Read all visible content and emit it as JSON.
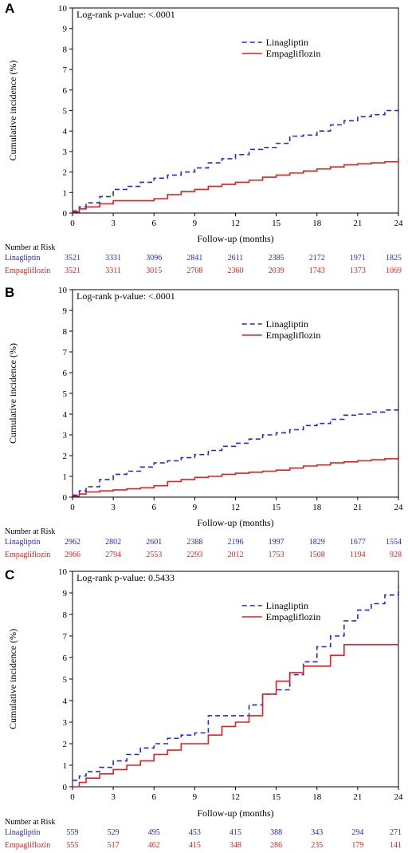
{
  "colors": {
    "linagliptin": "#2424e6",
    "empagliflozin": "#e61e1e",
    "axis": "#000000"
  },
  "chart_data": [
    {
      "panel": "A",
      "type": "line",
      "annotation": "Log-rank p-value: <.0001",
      "xlabel": "Follow-up (months)",
      "ylabel": "Cumulative incidence (%)",
      "xlim": [
        0,
        24
      ],
      "ylim": [
        0,
        10
      ],
      "xticks": [
        "0",
        "3",
        "6",
        "9",
        "12",
        "15",
        "18",
        "21",
        "24"
      ],
      "yticks": [
        "0",
        "1",
        "2",
        "3",
        "4",
        "5",
        "6",
        "7",
        "8",
        "9",
        "10"
      ],
      "legend_position": "top-right",
      "series": [
        {
          "name": "Linagliptin",
          "color": "#2424e6",
          "dash": true,
          "x": [
            0,
            0.5,
            1,
            2,
            3,
            4,
            5,
            6,
            7,
            8,
            9,
            10,
            11,
            12,
            13,
            14,
            15,
            16,
            17,
            18,
            19,
            20,
            21,
            22,
            23,
            24
          ],
          "y": [
            0.1,
            0.3,
            0.5,
            0.8,
            1.15,
            1.3,
            1.5,
            1.7,
            1.85,
            2.0,
            2.2,
            2.45,
            2.65,
            2.85,
            3.1,
            3.2,
            3.4,
            3.75,
            3.8,
            4.0,
            4.3,
            4.5,
            4.7,
            4.8,
            5.0,
            5.2
          ]
        },
        {
          "name": "Empagliflozin",
          "color": "#e61e1e",
          "dash": false,
          "x": [
            0,
            0.5,
            1,
            2,
            3,
            4,
            5,
            6,
            7,
            8,
            9,
            10,
            11,
            12,
            13,
            14,
            15,
            16,
            17,
            18,
            19,
            20,
            21,
            22,
            23,
            24
          ],
          "y": [
            0.05,
            0.2,
            0.3,
            0.45,
            0.6,
            0.6,
            0.6,
            0.7,
            0.9,
            1.05,
            1.15,
            1.3,
            1.4,
            1.5,
            1.6,
            1.75,
            1.85,
            1.95,
            2.05,
            2.15,
            2.25,
            2.35,
            2.4,
            2.45,
            2.5,
            2.7
          ]
        }
      ],
      "risk_table": {
        "label": "Number at Risk",
        "rows": [
          {
            "name": "Linagliptin",
            "color": "#2424e6",
            "values": [
              "3521",
              "3331",
              "3096",
              "2841",
              "2611",
              "2385",
              "2172",
              "1971",
              "1825"
            ]
          },
          {
            "name": "Empagliflozin",
            "color": "#e61e1e",
            "values": [
              "3521",
              "3311",
              "3015",
              "2708",
              "2360",
              "2039",
              "1743",
              "1373",
              "1069"
            ]
          }
        ]
      }
    },
    {
      "panel": "B",
      "type": "line",
      "annotation": "Log-rank p-value: <.0001",
      "xlabel": "Follow-up (months)",
      "ylabel": "Cumulative incidence (%)",
      "xlim": [
        0,
        24
      ],
      "ylim": [
        0,
        10
      ],
      "xticks": [
        "0",
        "3",
        "6",
        "9",
        "12",
        "15",
        "18",
        "21",
        "24"
      ],
      "yticks": [
        "0",
        "1",
        "2",
        "3",
        "4",
        "5",
        "6",
        "7",
        "8",
        "9",
        "10"
      ],
      "legend_position": "top-right",
      "series": [
        {
          "name": "Linagliptin",
          "color": "#2424e6",
          "dash": true,
          "x": [
            0,
            0.5,
            1,
            2,
            3,
            4,
            5,
            6,
            7,
            8,
            9,
            10,
            11,
            12,
            13,
            14,
            15,
            16,
            17,
            18,
            19,
            20,
            21,
            22,
            23,
            24
          ],
          "y": [
            0.1,
            0.3,
            0.5,
            0.85,
            1.1,
            1.25,
            1.45,
            1.65,
            1.75,
            1.9,
            2.05,
            2.25,
            2.45,
            2.6,
            2.8,
            3.0,
            3.1,
            3.25,
            3.45,
            3.55,
            3.75,
            3.95,
            4.0,
            4.1,
            4.2,
            4.4
          ]
        },
        {
          "name": "Empagliflozin",
          "color": "#e61e1e",
          "dash": false,
          "x": [
            0,
            0.5,
            1,
            2,
            3,
            4,
            5,
            6,
            7,
            8,
            9,
            10,
            11,
            12,
            13,
            14,
            15,
            16,
            17,
            18,
            19,
            20,
            21,
            22,
            23,
            24
          ],
          "y": [
            0.05,
            0.15,
            0.25,
            0.3,
            0.35,
            0.4,
            0.45,
            0.55,
            0.75,
            0.85,
            0.95,
            1.0,
            1.1,
            1.15,
            1.2,
            1.25,
            1.3,
            1.4,
            1.5,
            1.55,
            1.65,
            1.7,
            1.75,
            1.8,
            1.85,
            2.0
          ]
        }
      ],
      "risk_table": {
        "label": "Number at Risk",
        "rows": [
          {
            "name": "Linagliptin",
            "color": "#2424e6",
            "values": [
              "2962",
              "2802",
              "2601",
              "2388",
              "2196",
              "1997",
              "1829",
              "1677",
              "1554"
            ]
          },
          {
            "name": "Empagliflozin",
            "color": "#e61e1e",
            "values": [
              "2966",
              "2794",
              "2553",
              "2293",
              "2012",
              "1753",
              "1508",
              "1194",
              "928"
            ]
          }
        ]
      }
    },
    {
      "panel": "C",
      "type": "line",
      "annotation": "Log-rank p-value: 0.5433",
      "xlabel": "Follow-up (months)",
      "ylabel": "Cumulative incidence (%)",
      "xlim": [
        0,
        24
      ],
      "ylim": [
        0,
        10
      ],
      "xticks": [
        "0",
        "3",
        "6",
        "9",
        "12",
        "15",
        "18",
        "21",
        "24"
      ],
      "yticks": [
        "0",
        "1",
        "2",
        "3",
        "4",
        "5",
        "6",
        "7",
        "8",
        "9",
        "10"
      ],
      "legend_position": "top-right",
      "series": [
        {
          "name": "Linagliptin",
          "color": "#2424e6",
          "dash": true,
          "x": [
            0,
            0.5,
            1,
            2,
            3,
            4,
            5,
            6,
            7,
            8,
            9,
            10,
            11,
            12,
            13,
            14,
            15,
            16,
            17,
            18,
            19,
            20,
            21,
            22,
            23,
            24
          ],
          "y": [
            0.3,
            0.5,
            0.7,
            0.9,
            1.2,
            1.5,
            1.8,
            2.0,
            2.25,
            2.4,
            2.5,
            3.3,
            3.3,
            3.3,
            3.8,
            4.3,
            4.5,
            5.2,
            5.8,
            6.5,
            7.0,
            7.7,
            8.2,
            8.5,
            8.9,
            9.3
          ]
        },
        {
          "name": "Empagliflozin",
          "color": "#e61e1e",
          "dash": false,
          "x": [
            0,
            0.5,
            1,
            2,
            3,
            4,
            5,
            6,
            7,
            8,
            9,
            10,
            11,
            12,
            13,
            14,
            15,
            16,
            17,
            18,
            19,
            20,
            21,
            22,
            23,
            24
          ],
          "y": [
            0.0,
            0.2,
            0.4,
            0.6,
            0.8,
            1.0,
            1.2,
            1.5,
            1.7,
            2.0,
            2.0,
            2.4,
            2.8,
            3.0,
            3.3,
            4.3,
            4.9,
            5.3,
            5.6,
            5.6,
            6.1,
            6.6,
            6.6,
            6.6,
            6.6,
            6.6
          ]
        }
      ],
      "risk_table": {
        "label": "Number at Risk",
        "rows": [
          {
            "name": "Linagliptin",
            "color": "#2424e6",
            "values": [
              "559",
              "529",
              "495",
              "453",
              "415",
              "388",
              "343",
              "294",
              "271"
            ]
          },
          {
            "name": "Empagliflozin",
            "color": "#e61e1e",
            "values": [
              "555",
              "517",
              "462",
              "415",
              "348",
              "286",
              "235",
              "179",
              "141"
            ]
          }
        ]
      }
    }
  ]
}
